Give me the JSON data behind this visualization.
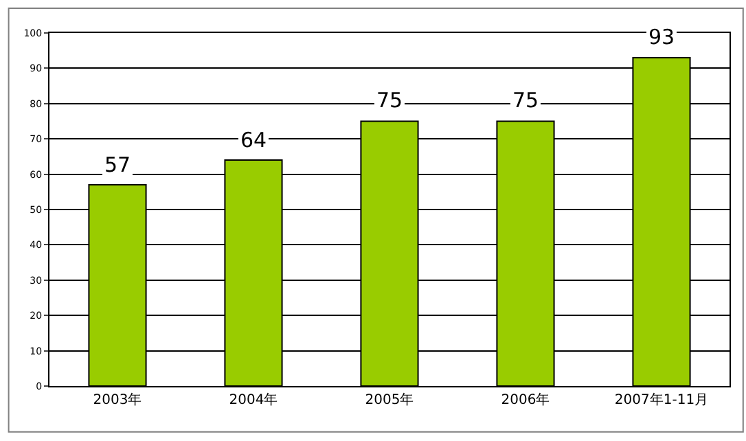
{
  "chart_data": {
    "type": "bar",
    "categories": [
      "2003年",
      "2004年",
      "2005年",
      "2006年",
      "2007年1-11月"
    ],
    "values": [
      57,
      64,
      75,
      75,
      93
    ],
    "color": "#99cc00",
    "ylim": [
      0,
      100
    ],
    "yticks": [
      0,
      10,
      20,
      30,
      40,
      50,
      60,
      70,
      80,
      90,
      100
    ],
    "grid": "y",
    "data_labels": true,
    "legend": false
  }
}
